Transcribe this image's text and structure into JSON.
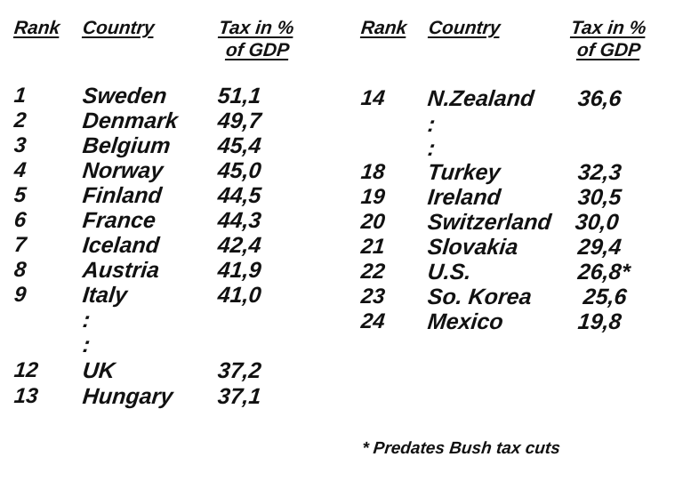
{
  "left_table": {
    "headers": {
      "rank": "Rank",
      "country": "Country",
      "tax_line1": "Tax in %",
      "tax_line2": "of GDP"
    },
    "rows": [
      {
        "rank": "1",
        "country": "Sweden",
        "tax": "51,1"
      },
      {
        "rank": "2",
        "country": "Denmark",
        "tax": "49,7"
      },
      {
        "rank": "3",
        "country": "Belgium",
        "tax": "45,4"
      },
      {
        "rank": "4",
        "country": "Norway",
        "tax": "45,0"
      },
      {
        "rank": "5",
        "country": "Finland",
        "tax": "44,5"
      },
      {
        "rank": "6",
        "country": "France",
        "tax": "44,3"
      },
      {
        "rank": "7",
        "country": "Iceland",
        "tax": "42,4"
      },
      {
        "rank": "8",
        "country": "Austria",
        "tax": "41,9"
      },
      {
        "rank": "9",
        "country": "Italy",
        "tax": "41,0"
      },
      {
        "rank": "",
        "country": ":",
        "tax": ""
      },
      {
        "rank": "",
        "country": ":",
        "tax": ""
      },
      {
        "rank": "12",
        "country": "UK",
        "tax": "37,2"
      },
      {
        "rank": "13",
        "country": "Hungary",
        "tax": "37,1"
      }
    ]
  },
  "right_table": {
    "headers": {
      "rank": "Rank",
      "country": "Country",
      "tax_line1": "Tax in %",
      "tax_line2": "of GDP"
    },
    "rows": [
      {
        "rank": "14",
        "country": "N.Zealand",
        "tax": "36,6"
      },
      {
        "rank": "",
        "country": ":",
        "tax": ""
      },
      {
        "rank": "",
        "country": ":",
        "tax": ""
      },
      {
        "rank": "18",
        "country": "Turkey",
        "tax": "32,3"
      },
      {
        "rank": "19",
        "country": "Ireland",
        "tax": "30,5"
      },
      {
        "rank": "20",
        "country": "Switzerland",
        "tax": "30,0"
      },
      {
        "rank": "21",
        "country": "Slovakia",
        "tax": "29,4"
      },
      {
        "rank": "22",
        "country": "U.S.",
        "tax": "26,8*"
      },
      {
        "rank": "23",
        "country": "So. Korea",
        "tax": "25,6"
      },
      {
        "rank": "24",
        "country": "Mexico",
        "tax": "19,8"
      }
    ]
  },
  "footnote": "* Predates Bush tax cuts"
}
